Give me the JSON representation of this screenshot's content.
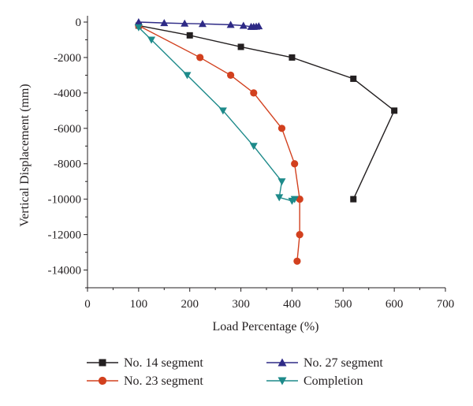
{
  "chart_data": {
    "type": "line",
    "title": "",
    "xlabel": "Load Percentage (%)",
    "ylabel": "Vertical Displacement (mm)",
    "xlim": [
      0,
      700
    ],
    "ylim": [
      -15000,
      0
    ],
    "xticks": [
      0,
      100,
      200,
      300,
      400,
      500,
      600,
      700
    ],
    "yticks": [
      0,
      -2000,
      -4000,
      -6000,
      -8000,
      -10000,
      -12000,
      -14000
    ],
    "grid": false,
    "legend_position": "bottom",
    "series": [
      {
        "name": "No. 14 segment",
        "marker": "square",
        "color": "#231f20",
        "points": [
          [
            100,
            -200
          ],
          [
            200,
            -750
          ],
          [
            300,
            -1400
          ],
          [
            400,
            -2000
          ],
          [
            520,
            -3200
          ],
          [
            600,
            -5000
          ],
          [
            520,
            -10000
          ]
        ]
      },
      {
        "name": "No. 23 segment",
        "marker": "circle",
        "color": "#d2401e",
        "points": [
          [
            100,
            -200
          ],
          [
            220,
            -2000
          ],
          [
            280,
            -3000
          ],
          [
            325,
            -4000
          ],
          [
            380,
            -6000
          ],
          [
            405,
            -8000
          ],
          [
            415,
            -10000
          ],
          [
            415,
            -12000
          ],
          [
            410,
            -13500
          ]
        ]
      },
      {
        "name": "No. 27 segment",
        "marker": "triangle-up",
        "color": "#2e2a86",
        "points": [
          [
            100,
            0
          ],
          [
            150,
            -50
          ],
          [
            190,
            -80
          ],
          [
            225,
            -100
          ],
          [
            280,
            -150
          ],
          [
            305,
            -200
          ],
          [
            320,
            -260
          ],
          [
            325,
            -260
          ],
          [
            330,
            -250
          ],
          [
            335,
            -230
          ]
        ]
      },
      {
        "name": "Completion",
        "marker": "triangle-down",
        "color": "#1d8a8a",
        "points": [
          [
            100,
            -300
          ],
          [
            125,
            -1000
          ],
          [
            195,
            -3000
          ],
          [
            265,
            -5000
          ],
          [
            325,
            -7000
          ],
          [
            380,
            -9000
          ],
          [
            375,
            -9900
          ],
          [
            400,
            -10100
          ],
          [
            405,
            -10000
          ]
        ]
      }
    ]
  }
}
